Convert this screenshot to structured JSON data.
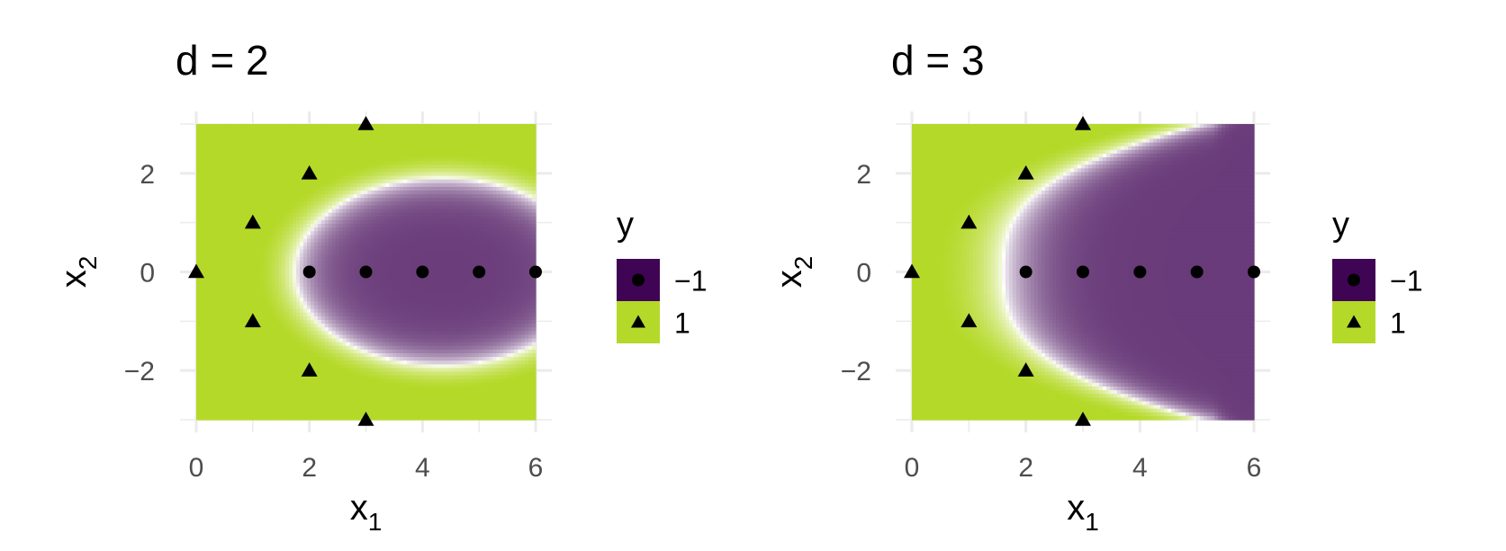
{
  "chart_data": [
    {
      "type": "heatmap",
      "title": "d = 2",
      "xlabel": {
        "main": "x",
        "sub": "1"
      },
      "ylabel": {
        "main": "x",
        "sub": "2"
      },
      "xlim": [
        0,
        6
      ],
      "ylim": [
        -3,
        3
      ],
      "x_ticks": [
        0,
        2,
        4,
        6
      ],
      "x_tick_labels": [
        "0",
        "2",
        "4",
        "6"
      ],
      "y_ticks": [
        -2,
        0,
        2
      ],
      "y_tick_labels": [
        "−2",
        "0",
        "2"
      ],
      "grid": true,
      "boundary": "ellipse",
      "boundary_params": {
        "cx": 4.35,
        "cy": 0,
        "rx": 2.6,
        "ry": 1.9
      },
      "points": [
        {
          "x": 0,
          "y": 0,
          "class": "1"
        },
        {
          "x": 1,
          "y": 1,
          "class": "1"
        },
        {
          "x": 1,
          "y": -1,
          "class": "1"
        },
        {
          "x": 2,
          "y": 2,
          "class": "1"
        },
        {
          "x": 2,
          "y": -2,
          "class": "1"
        },
        {
          "x": 3,
          "y": 3,
          "class": "1"
        },
        {
          "x": 3,
          "y": -3,
          "class": "1"
        },
        {
          "x": 2,
          "y": 0,
          "class": "-1"
        },
        {
          "x": 3,
          "y": 0,
          "class": "-1"
        },
        {
          "x": 4,
          "y": 0,
          "class": "-1"
        },
        {
          "x": 5,
          "y": 0,
          "class": "-1"
        },
        {
          "x": 6,
          "y": 0,
          "class": "-1"
        }
      ],
      "legend": {
        "title": "y",
        "placement": "right",
        "entries": [
          {
            "label": "−1",
            "class": "-1",
            "shape": "circle",
            "color": "#3f0454"
          },
          {
            "label": "1",
            "class": "1",
            "shape": "triangle",
            "color": "#b5d929"
          }
        ]
      }
    },
    {
      "type": "heatmap",
      "title": "d = 3",
      "xlabel": {
        "main": "x",
        "sub": "1"
      },
      "ylabel": {
        "main": "x",
        "sub": "2"
      },
      "xlim": [
        0,
        6
      ],
      "ylim": [
        -3,
        3
      ],
      "x_ticks": [
        0,
        2,
        4,
        6
      ],
      "x_tick_labels": [
        "0",
        "2",
        "4",
        "6"
      ],
      "y_ticks": [
        -2,
        0,
        2
      ],
      "y_tick_labels": [
        "−2",
        "0",
        "2"
      ],
      "grid": true,
      "boundary": "cubic",
      "boundary_params": {
        "x0": 1.6,
        "k": 0.2
      },
      "points": [
        {
          "x": 0,
          "y": 0,
          "class": "1"
        },
        {
          "x": 1,
          "y": 1,
          "class": "1"
        },
        {
          "x": 1,
          "y": -1,
          "class": "1"
        },
        {
          "x": 2,
          "y": 2,
          "class": "1"
        },
        {
          "x": 2,
          "y": -2,
          "class": "1"
        },
        {
          "x": 3,
          "y": 3,
          "class": "1"
        },
        {
          "x": 3,
          "y": -3,
          "class": "1"
        },
        {
          "x": 2,
          "y": 0,
          "class": "-1"
        },
        {
          "x": 3,
          "y": 0,
          "class": "-1"
        },
        {
          "x": 4,
          "y": 0,
          "class": "-1"
        },
        {
          "x": 5,
          "y": 0,
          "class": "-1"
        },
        {
          "x": 6,
          "y": 0,
          "class": "-1"
        }
      ],
      "legend": {
        "title": "y",
        "placement": "right",
        "entries": [
          {
            "label": "−1",
            "class": "-1",
            "shape": "circle",
            "color": "#3f0454"
          },
          {
            "label": "1",
            "class": "1",
            "shape": "triangle",
            "color": "#b5d929"
          }
        ]
      }
    }
  ],
  "colors": {
    "negative": "#3f0454",
    "positive": "#b5d929",
    "midpoint": "#ffffff",
    "grid": "#ebebeb",
    "marker": "#000000"
  }
}
